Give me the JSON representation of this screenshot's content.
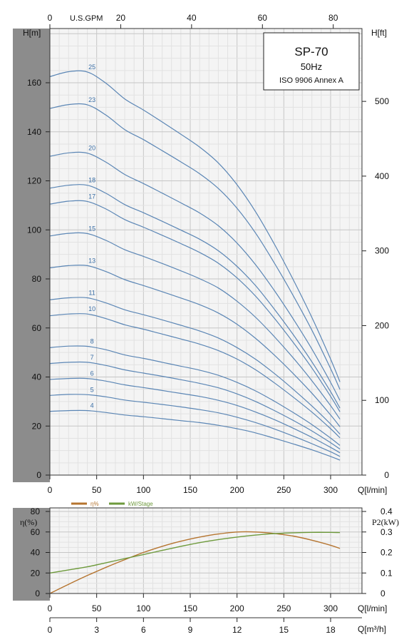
{
  "chart_data": [
    {
      "type": "line",
      "title_box": {
        "title": "SP-70",
        "subtitle": "50Hz",
        "note": "ISO 9906 Annex A"
      },
      "xlabel": "Q[l/min]",
      "ylabel_left": "H[m]",
      "ylabel_right": "H[ft]",
      "xlabel_top": "U.S.GPM",
      "xlim": [
        0,
        330
      ],
      "ylim": [
        0,
        175
      ],
      "xticks": [
        "0",
        "50",
        "100",
        "150",
        "200",
        "250",
        "300"
      ],
      "xticks_top": [
        "0",
        "20",
        "40",
        "60",
        "80"
      ],
      "yticks_left": [
        "0",
        "20",
        "40",
        "60",
        "80",
        "100",
        "120",
        "140",
        "160"
      ],
      "yticks_right": [
        "0",
        "100",
        "200",
        "300",
        "400",
        "500"
      ],
      "grid": true,
      "x": [
        0,
        20,
        40,
        60,
        80,
        100,
        120,
        140,
        160,
        180,
        200,
        220,
        240,
        260,
        280,
        300,
        310
      ],
      "series": [
        {
          "name": "25",
          "values": [
            162.5,
            164.5,
            164.4,
            159.8,
            153.4,
            148.9,
            144.0,
            139.0,
            133.8,
            127.3,
            118.4,
            107.3,
            94.1,
            79.7,
            64.3,
            47.3,
            38.0
          ]
        },
        {
          "name": "23",
          "values": [
            149.5,
            151.1,
            151.0,
            146.8,
            140.9,
            136.8,
            132.3,
            127.7,
            122.9,
            116.9,
            108.8,
            98.6,
            86.4,
            73.2,
            59.1,
            43.4,
            34.9
          ]
        },
        {
          "name": "20",
          "values": [
            130.0,
            131.4,
            131.3,
            127.6,
            122.6,
            118.9,
            115.0,
            111.0,
            106.9,
            101.7,
            94.6,
            85.7,
            75.2,
            63.7,
            51.4,
            37.8,
            30.4
          ]
        },
        {
          "name": "18",
          "values": [
            117.0,
            118.2,
            118.2,
            114.9,
            110.3,
            107.0,
            103.5,
            99.9,
            96.2,
            91.5,
            85.1,
            77.2,
            67.6,
            57.3,
            46.2,
            34.0,
            27.3
          ]
        },
        {
          "name": "17",
          "values": [
            110.5,
            111.7,
            111.6,
            108.5,
            104.2,
            101.1,
            97.8,
            94.4,
            90.8,
            86.4,
            80.4,
            72.9,
            63.9,
            54.1,
            43.7,
            32.1,
            25.8
          ]
        },
        {
          "name": "15",
          "values": [
            97.5,
            98.6,
            98.5,
            95.7,
            91.9,
            89.2,
            86.3,
            83.3,
            80.1,
            76.3,
            70.9,
            64.3,
            56.4,
            47.8,
            38.5,
            28.3,
            22.8
          ]
        },
        {
          "name": "13",
          "values": [
            84.5,
            85.4,
            85.4,
            83.0,
            79.7,
            77.3,
            74.8,
            72.2,
            69.5,
            66.1,
            61.5,
            55.7,
            48.9,
            41.4,
            33.4,
            24.5,
            19.7
          ]
        },
        {
          "name": "11",
          "values": [
            71.5,
            72.3,
            72.3,
            70.2,
            67.4,
            65.4,
            63.3,
            61.1,
            58.8,
            55.9,
            52.0,
            47.2,
            41.4,
            35.0,
            28.2,
            20.8,
            16.7
          ]
        },
        {
          "name": "10",
          "values": [
            65.0,
            65.7,
            65.7,
            63.8,
            61.3,
            59.5,
            57.5,
            55.5,
            53.4,
            50.8,
            47.3,
            42.9,
            37.6,
            31.8,
            25.7,
            18.9,
            15.2
          ]
        },
        {
          "name": "8",
          "values": [
            52.0,
            52.6,
            52.5,
            51.1,
            49.0,
            47.6,
            46.0,
            44.4,
            42.8,
            40.7,
            37.8,
            34.3,
            30.1,
            25.5,
            20.6,
            15.1,
            12.1
          ]
        },
        {
          "name": "7",
          "values": [
            45.5,
            46.0,
            46.0,
            44.7,
            42.9,
            41.6,
            40.3,
            38.9,
            37.4,
            35.6,
            33.1,
            30.0,
            26.3,
            22.3,
            18.0,
            13.2,
            10.6
          ]
        },
        {
          "name": "6",
          "values": [
            39.0,
            39.4,
            39.4,
            38.3,
            36.8,
            35.7,
            34.5,
            33.3,
            32.1,
            30.5,
            28.4,
            25.7,
            22.6,
            19.1,
            15.4,
            11.3,
            9.1
          ]
        },
        {
          "name": "5",
          "values": [
            32.5,
            32.9,
            32.8,
            31.9,
            30.6,
            29.7,
            28.8,
            27.8,
            26.7,
            25.4,
            23.6,
            21.4,
            18.8,
            15.9,
            12.8,
            9.5,
            7.6
          ]
        },
        {
          "name": "4",
          "values": [
            26.0,
            26.3,
            26.3,
            25.5,
            24.5,
            23.8,
            23.0,
            22.2,
            21.4,
            20.3,
            18.9,
            17.2,
            15.0,
            12.7,
            10.3,
            7.6,
            6.1
          ]
        }
      ]
    },
    {
      "type": "line",
      "xlabel": "Q[l/min]",
      "xlabel_m3h": "Q[m³/h]",
      "ylabel_left": "η(%)",
      "ylabel_right": "P2(kW)",
      "xlim": [
        0,
        330
      ],
      "ylim_left": [
        0,
        80
      ],
      "ylim_right": [
        0,
        0.4
      ],
      "xticks": [
        "0",
        "50",
        "100",
        "150",
        "200",
        "250",
        "300"
      ],
      "xticks_m3h": [
        "0",
        "3",
        "6",
        "9",
        "12",
        "15",
        "18"
      ],
      "yticks_left": [
        "0",
        "20",
        "40",
        "60",
        "80"
      ],
      "yticks_right": [
        "0",
        "0.1",
        "0.2",
        "0.3",
        "0.4"
      ],
      "grid": true,
      "legend": [
        "η%",
        "kW/Stage"
      ],
      "legend_colors": [
        "#b5742f",
        "#6e9a3c"
      ],
      "x": [
        0,
        20,
        40,
        60,
        80,
        100,
        120,
        140,
        160,
        180,
        200,
        220,
        240,
        260,
        280,
        300,
        310
      ],
      "series": [
        {
          "name": "η%",
          "axis": "left",
          "values": [
            0,
            9,
            17.5,
            25.5,
            33,
            40,
            46,
            51,
            55,
            58,
            60,
            60,
            58.5,
            56,
            52,
            47,
            44
          ]
        },
        {
          "name": "kW/Stage",
          "axis": "right",
          "values": [
            0.1,
            0.115,
            0.13,
            0.15,
            0.17,
            0.19,
            0.21,
            0.23,
            0.248,
            0.263,
            0.275,
            0.285,
            0.292,
            0.296,
            0.298,
            0.298,
            0.297
          ]
        }
      ]
    }
  ],
  "colors": {
    "curve": "#5b86b5",
    "curve_label": "#3a6ea5",
    "efficiency": "#b5742f",
    "power": "#6e9a3c",
    "grid_minor": "#e2e2e2",
    "grid_major": "#c6c6c6",
    "gray_band": "#8c8c8c"
  }
}
